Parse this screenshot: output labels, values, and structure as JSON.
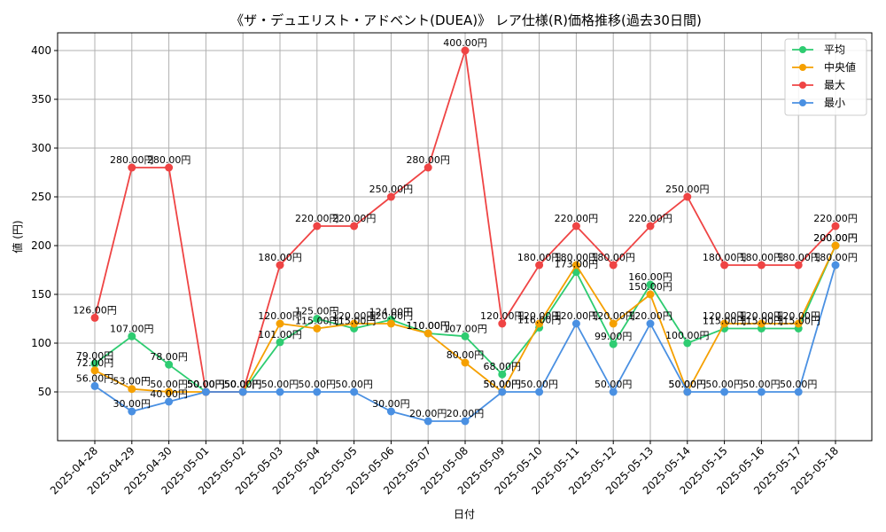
{
  "chart_data": {
    "type": "line",
    "title": "《ザ・デュエリスト・アドベント(DUEA)》 レア仕様(R)価格推移(過去30日間)",
    "xlabel": "日付",
    "ylabel": "値 (円)",
    "ylim": [
      0,
      420
    ],
    "yticks": [
      50,
      100,
      150,
      200,
      250,
      300,
      350,
      400
    ],
    "grid": true,
    "legend_position": "top-right",
    "label_suffix": "円",
    "x": [
      "2025-04-28",
      "2025-04-29",
      "2025-04-30",
      "2025-05-01",
      "2025-05-02",
      "2025-05-03",
      "2025-05-04",
      "2025-05-05",
      "2025-05-06",
      "2025-05-07",
      "2025-05-08",
      "2025-05-09",
      "2025-05-10",
      "2025-05-11",
      "2025-05-12",
      "2025-05-13",
      "2025-05-14",
      "2025-05-15",
      "2025-05-16",
      "2025-05-17",
      "2025-05-18"
    ],
    "series": [
      {
        "name": "平均",
        "color": "#2ecc71",
        "values": [
          79,
          107,
          78,
          50,
          50,
          101,
          125,
          115,
          124,
          110,
          107,
          68,
          116,
          173,
          99,
          160,
          100,
          115,
          115,
          115,
          200
        ]
      },
      {
        "name": "中央値",
        "color": "#f5a000",
        "values": [
          72,
          53,
          50,
          50,
          50,
          120,
          115,
          120,
          120,
          110,
          80,
          50,
          120,
          180,
          120,
          150,
          50,
          120,
          120,
          120,
          200
        ]
      },
      {
        "name": "最大",
        "color": "#ef4444",
        "values": [
          126,
          280,
          280,
          50,
          50,
          180,
          220,
          220,
          250,
          280,
          400,
          120,
          180,
          220,
          180,
          220,
          250,
          180,
          180,
          180,
          220
        ]
      },
      {
        "name": "最小",
        "color": "#4a90e2",
        "values": [
          56,
          30,
          40,
          50,
          50,
          50,
          50,
          50,
          30,
          20,
          20,
          50,
          50,
          120,
          50,
          120,
          50,
          50,
          50,
          50,
          180
        ]
      }
    ]
  }
}
